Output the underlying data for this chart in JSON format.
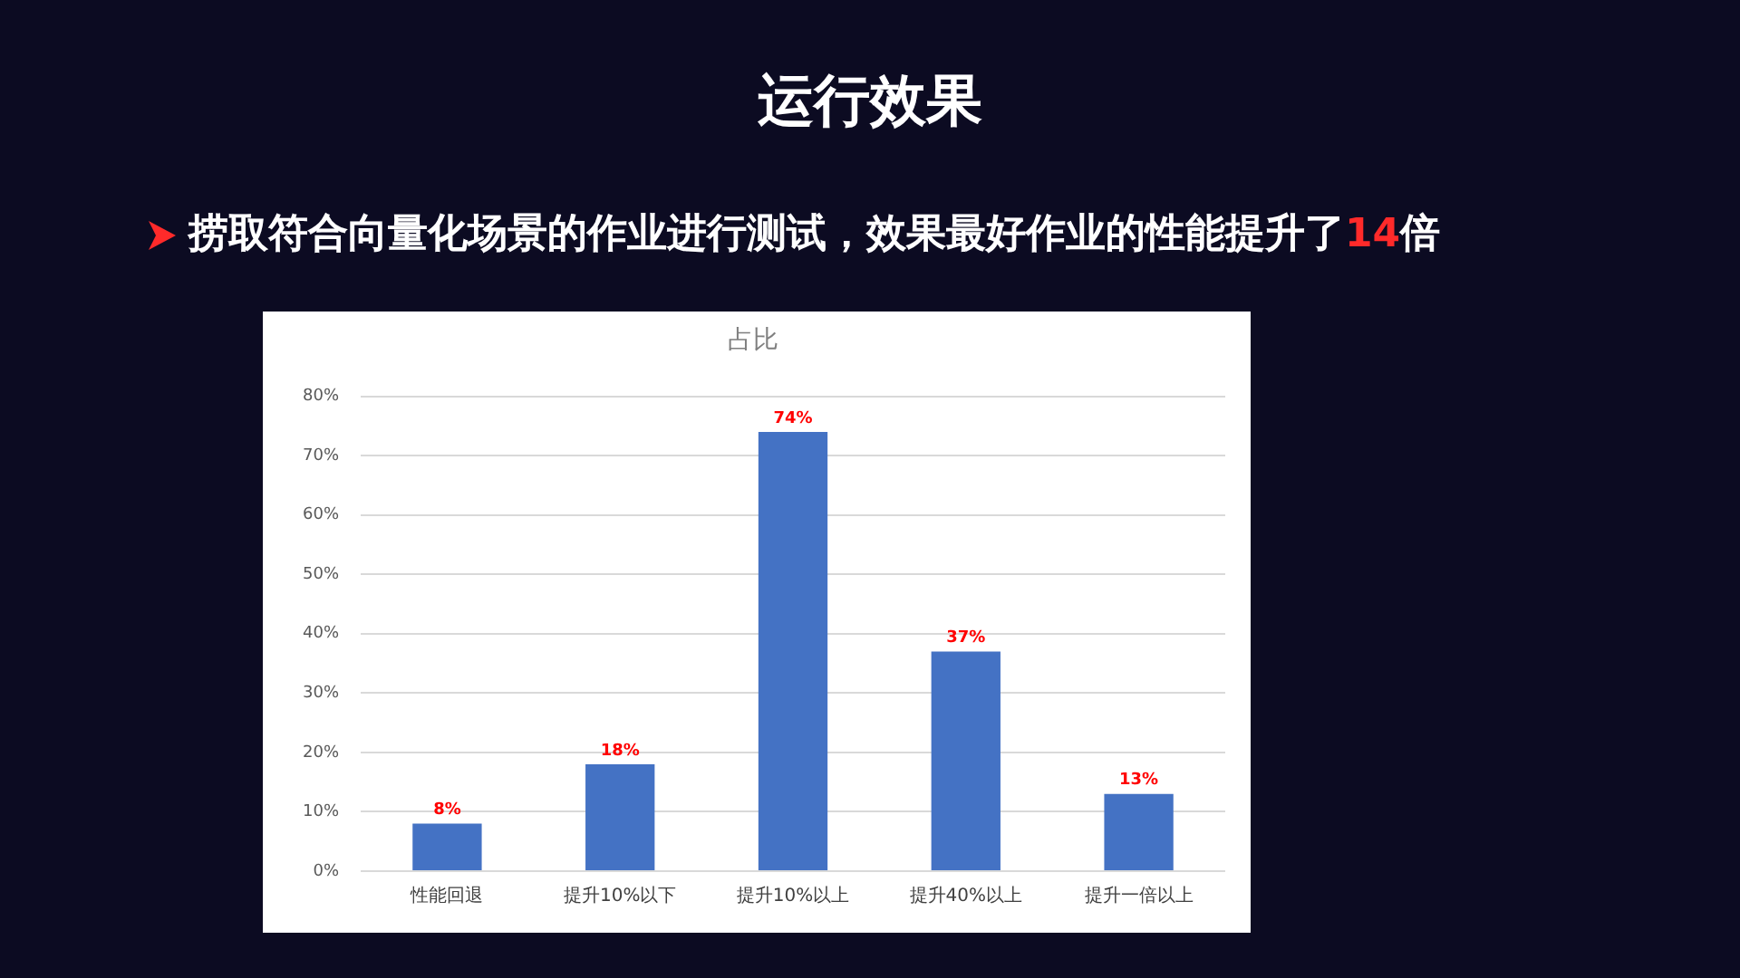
{
  "chart_data": {
    "type": "bar",
    "title": "运行效果",
    "subtitle": "捞取符合向量化场景的作业进行测试，效果最好作业的性能提升了14倍",
    "annotations": [
      "占比"
    ],
    "categories": [
      "性能回退",
      "提升10%以下",
      "提升10%以上",
      "提升40%以上",
      "提升一倍以上"
    ],
    "values": [
      8,
      18,
      74,
      37,
      13
    ],
    "value_labels": [
      "8%",
      "18%",
      "74%",
      "37%",
      "13%"
    ],
    "color": "#4472c4",
    "ylim": [
      0,
      80
    ],
    "yticks": [
      {
        "value": 0,
        "label": "0%"
      },
      {
        "value": 10,
        "label": "10%"
      },
      {
        "value": 20,
        "label": "20%"
      },
      {
        "value": 30,
        "label": "30%"
      },
      {
        "value": 40,
        "label": "40%"
      },
      {
        "value": 50,
        "label": "50%"
      },
      {
        "value": 60,
        "label": "60%"
      },
      {
        "value": 70,
        "label": "70%"
      },
      {
        "value": 80,
        "label": "80%"
      }
    ],
    "grid": "y"
  }
}
